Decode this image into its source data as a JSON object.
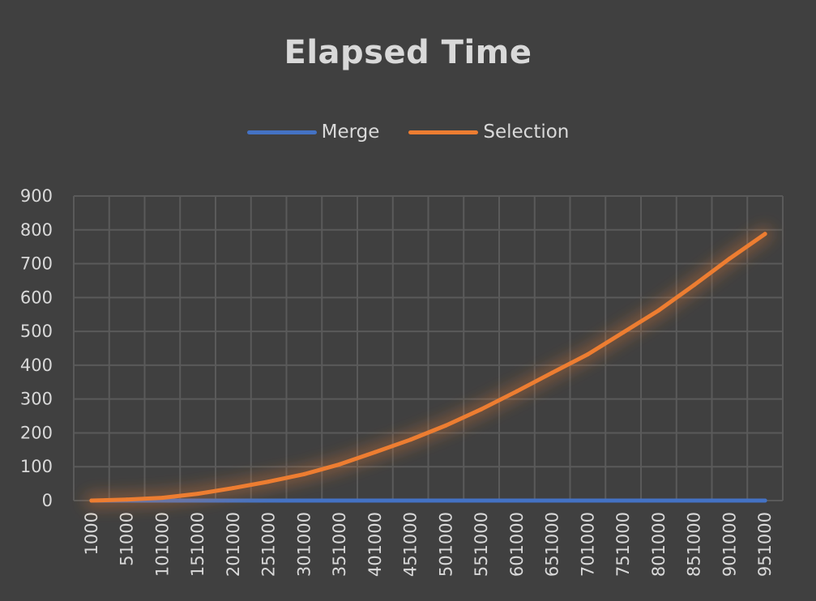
{
  "chart_data": {
    "type": "line",
    "title": "Elapsed Time",
    "xlabel": "",
    "ylabel": "",
    "x": [
      1000,
      51000,
      101000,
      151000,
      201000,
      251000,
      301000,
      351000,
      401000,
      451000,
      501000,
      551000,
      601000,
      651000,
      701000,
      751000,
      801000,
      851000,
      901000,
      951000
    ],
    "categories": [
      "1000",
      "51000",
      "101000",
      "151000",
      "201000",
      "251000",
      "301000",
      "351000",
      "401000",
      "451000",
      "501000",
      "551000",
      "601000",
      "651000",
      "701000",
      "751000",
      "801000",
      "851000",
      "901000",
      "951000"
    ],
    "series": [
      {
        "name": "Merge",
        "color": "#4472c4",
        "values": [
          0,
          0,
          0,
          0,
          0,
          0,
          0,
          0,
          0,
          0,
          0,
          0,
          0,
          0,
          0,
          0,
          0,
          0,
          0,
          0
        ]
      },
      {
        "name": "Selection",
        "color": "#ed7d31",
        "values": [
          0,
          3,
          8,
          20,
          37,
          56,
          78,
          107,
          143,
          180,
          222,
          270,
          323,
          378,
          432,
          497,
          562,
          637,
          715,
          788
        ]
      }
    ],
    "ylim": [
      0,
      900
    ],
    "yticks": [
      "0",
      "100",
      "200",
      "300",
      "400",
      "500",
      "600",
      "700",
      "800",
      "900"
    ],
    "grid": true,
    "legend_position": "top"
  }
}
